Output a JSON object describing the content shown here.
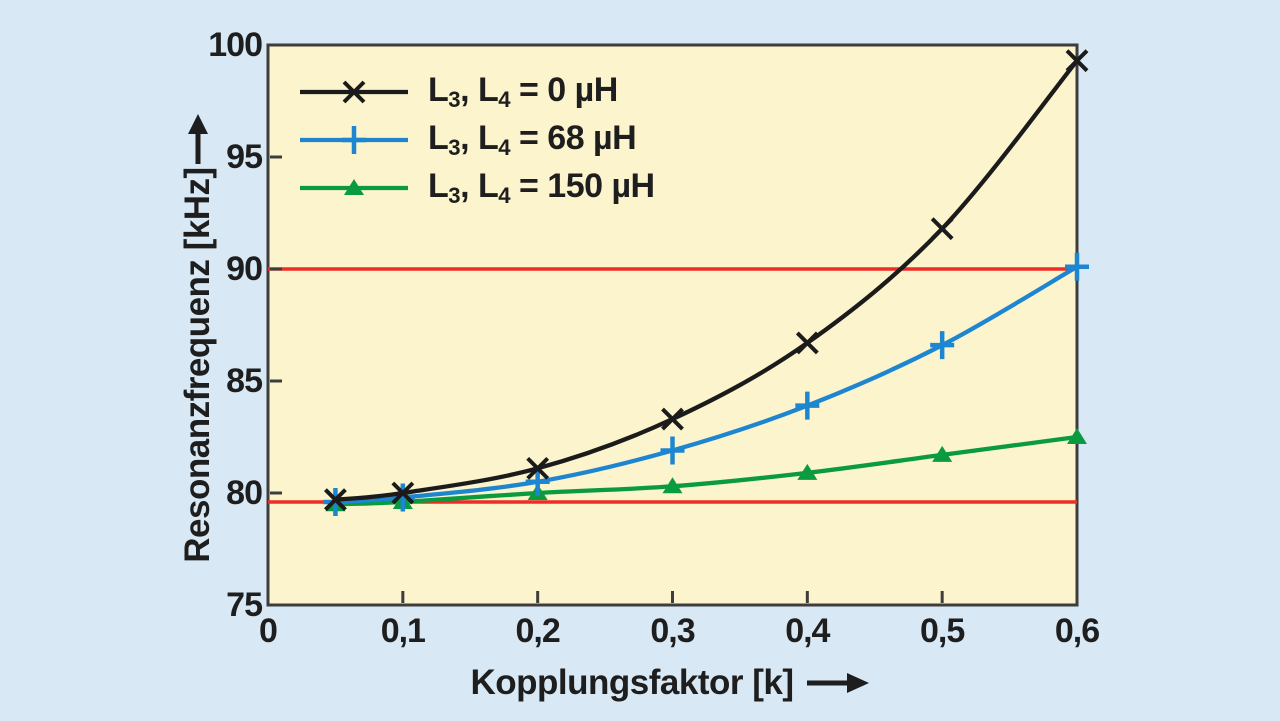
{
  "colors": {
    "outer_bg": "#d8e8f4",
    "plot_bg": "#fbf4cd",
    "frame": "#3d3d3d",
    "text": "#1e1e1e",
    "reference_red": "#ee2d24"
  },
  "chart_data": {
    "type": "line",
    "title": "",
    "xlabel": "Kopplungsfaktor [k]",
    "ylabel": "Resonanzfrequenz [kHz]",
    "xlim": [
      0,
      0.6
    ],
    "ylim": [
      75,
      100
    ],
    "grid": false,
    "legend_position": "top-left",
    "x_ticks": [
      0,
      0.1,
      0.2,
      0.3,
      0.4,
      0.5,
      0.6
    ],
    "x_tick_labels": [
      "0",
      "0,1",
      "0,2",
      "0,3",
      "0,4",
      "0,5",
      "0,6"
    ],
    "y_ticks": [
      75,
      80,
      85,
      90,
      95,
      100
    ],
    "y_tick_labels": [
      "75",
      "80",
      "85",
      "90",
      "95",
      "100"
    ],
    "x": [
      0.05,
      0.1,
      0.2,
      0.3,
      0.4,
      0.5,
      0.6
    ],
    "series": [
      {
        "name": "L3, L4 = 0 µH",
        "label_parts": [
          [
            "L",
            0
          ],
          [
            "3",
            1
          ],
          [
            ", L",
            0
          ],
          [
            "4",
            1
          ],
          [
            " = 0 µH",
            0
          ]
        ],
        "color": "#1b1b1b",
        "marker": "x",
        "values": [
          79.7,
          80.0,
          81.1,
          83.3,
          86.7,
          91.8,
          99.3
        ]
      },
      {
        "name": "L3, L4 = 68 µH",
        "label_parts": [
          [
            "L",
            0
          ],
          [
            "3",
            1
          ],
          [
            ", L",
            0
          ],
          [
            "4",
            1
          ],
          [
            " = 68 µH",
            0
          ]
        ],
        "color": "#1e86d0",
        "marker": "plus",
        "values": [
          79.6,
          79.8,
          80.5,
          81.9,
          83.9,
          86.6,
          90.1
        ]
      },
      {
        "name": "L3, L4 = 150 µH",
        "label_parts": [
          [
            "L",
            0
          ],
          [
            "3",
            1
          ],
          [
            ", L",
            0
          ],
          [
            "4",
            1
          ],
          [
            " = 150 µH",
            0
          ]
        ],
        "color": "#0a9b40",
        "marker": "triangle",
        "values": [
          79.5,
          79.6,
          80.0,
          80.3,
          80.9,
          81.7,
          82.5
        ]
      }
    ],
    "reference_lines": [
      {
        "y": 90,
        "color": "#ee2d24"
      },
      {
        "y": 79.6,
        "color": "#ee2d24"
      }
    ]
  }
}
